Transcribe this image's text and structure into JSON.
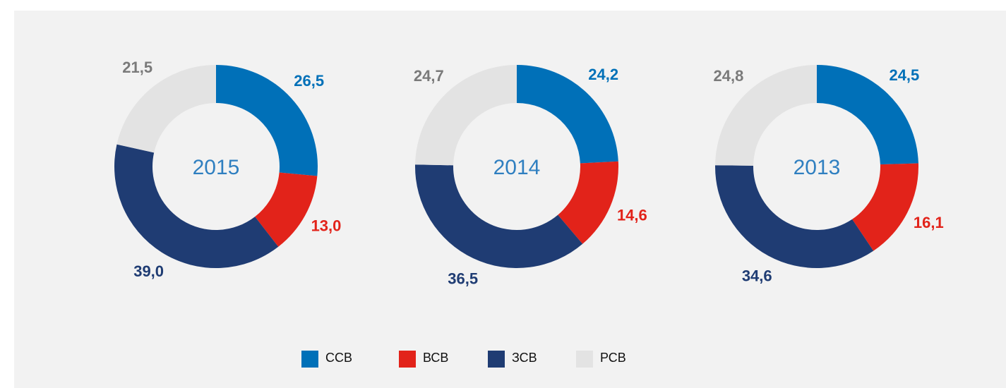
{
  "legend": [
    {
      "name": "ССВ",
      "color": "#0070b8",
      "text_color": "#0070b8"
    },
    {
      "name": "ВСВ",
      "color": "#e2231a",
      "text_color": "#e2231a"
    },
    {
      "name": "ЗСВ",
      "color": "#1f3c73",
      "text_color": "#1f3c73"
    },
    {
      "name": "РСВ",
      "color": "#e3e3e3",
      "text_color": "#7a7a7a"
    }
  ],
  "chart_data": [
    {
      "type": "donut",
      "title": "2015",
      "values": [
        26.5,
        13.0,
        39.0,
        21.5
      ],
      "value_labels": [
        "26,5",
        "13,0",
        "39,0",
        "21,5"
      ]
    },
    {
      "type": "donut",
      "title": "2014",
      "values": [
        24.2,
        14.6,
        36.5,
        24.7
      ],
      "value_labels": [
        "24,2",
        "14,6",
        "36,5",
        "24,7"
      ]
    },
    {
      "type": "donut",
      "title": "2013",
      "values": [
        24.5,
        16.1,
        34.6,
        24.8
      ],
      "value_labels": [
        "24,5",
        "16,1",
        "34,6",
        "24,8"
      ]
    }
  ]
}
